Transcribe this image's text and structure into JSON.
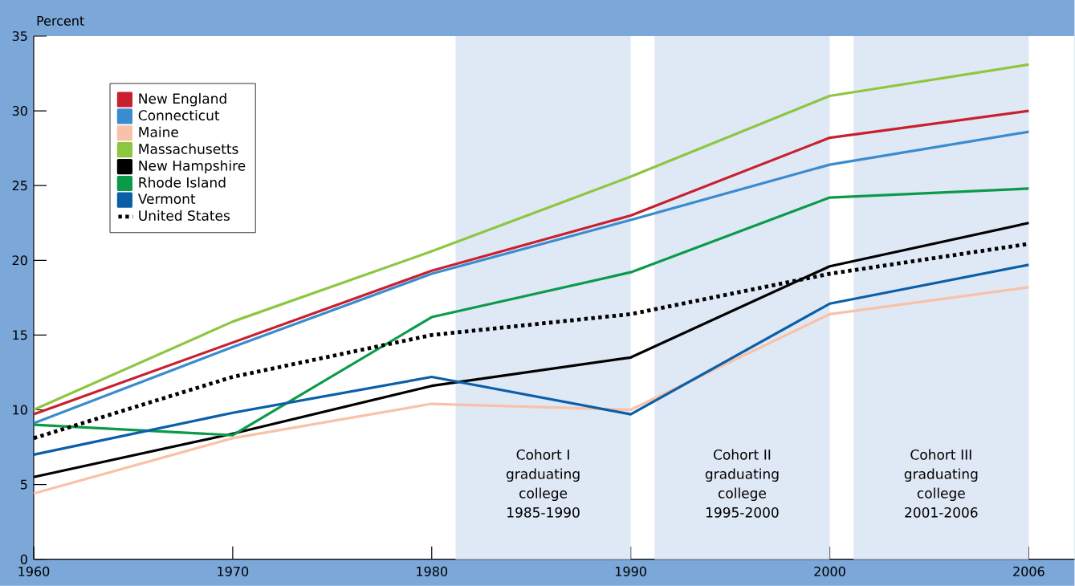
{
  "chart_data": {
    "type": "line",
    "ylabel": "Percent",
    "categories": [
      "1960",
      "1970",
      "1980",
      "1990",
      "2000",
      "2006"
    ],
    "ylim": [
      0,
      35
    ],
    "yticks": [
      0,
      5,
      10,
      15,
      20,
      25,
      30,
      35
    ],
    "legend": "top left",
    "grid": false,
    "marker": "none",
    "series": [
      {
        "name": "New England",
        "color": "#c8202f",
        "values": [
          9.7,
          14.5,
          19.3,
          23.0,
          28.2,
          30.0
        ]
      },
      {
        "name": "Connecticut",
        "color": "#3a8ccf",
        "values": [
          9.1,
          14.2,
          19.1,
          22.7,
          26.4,
          28.6
        ]
      },
      {
        "name": "Maine",
        "color": "#f9c2a8",
        "values": [
          4.4,
          8.1,
          10.4,
          10.0,
          16.4,
          18.2
        ]
      },
      {
        "name": "Massachusetts",
        "color": "#8dc63f",
        "values": [
          10.0,
          15.9,
          20.6,
          25.6,
          31.0,
          33.1
        ]
      },
      {
        "name": "New Hampshire",
        "color": "#000000",
        "values": [
          5.5,
          8.4,
          11.6,
          13.5,
          19.6,
          22.5
        ]
      },
      {
        "name": "Rhode Island",
        "color": "#0b9a4a",
        "values": [
          9.0,
          8.3,
          16.2,
          19.2,
          24.2,
          24.8
        ]
      },
      {
        "name": "Vermont",
        "color": "#0a5fa8",
        "values": [
          7.0,
          9.8,
          12.2,
          9.7,
          17.1,
          19.7
        ]
      },
      {
        "name": "United States",
        "color": "#000000",
        "line_style": "dotted",
        "values": [
          8.1,
          12.2,
          15.0,
          16.4,
          19.1,
          21.1
        ]
      }
    ],
    "bands": [
      {
        "axis": "x",
        "from": "1980",
        "to": "1990",
        "label": "Cohort I graduating college 1985-1990",
        "color": "#dfe8f5"
      },
      {
        "axis": "x",
        "from": "1990",
        "to": "2000",
        "label": "Cohort II graduating college 1995-2000",
        "color": "#dfe8f5"
      },
      {
        "axis": "x",
        "from": "2000",
        "to": "2006",
        "label": "Cohort III graduating college 2001-2006",
        "color": "#dfe8f5"
      }
    ]
  }
}
